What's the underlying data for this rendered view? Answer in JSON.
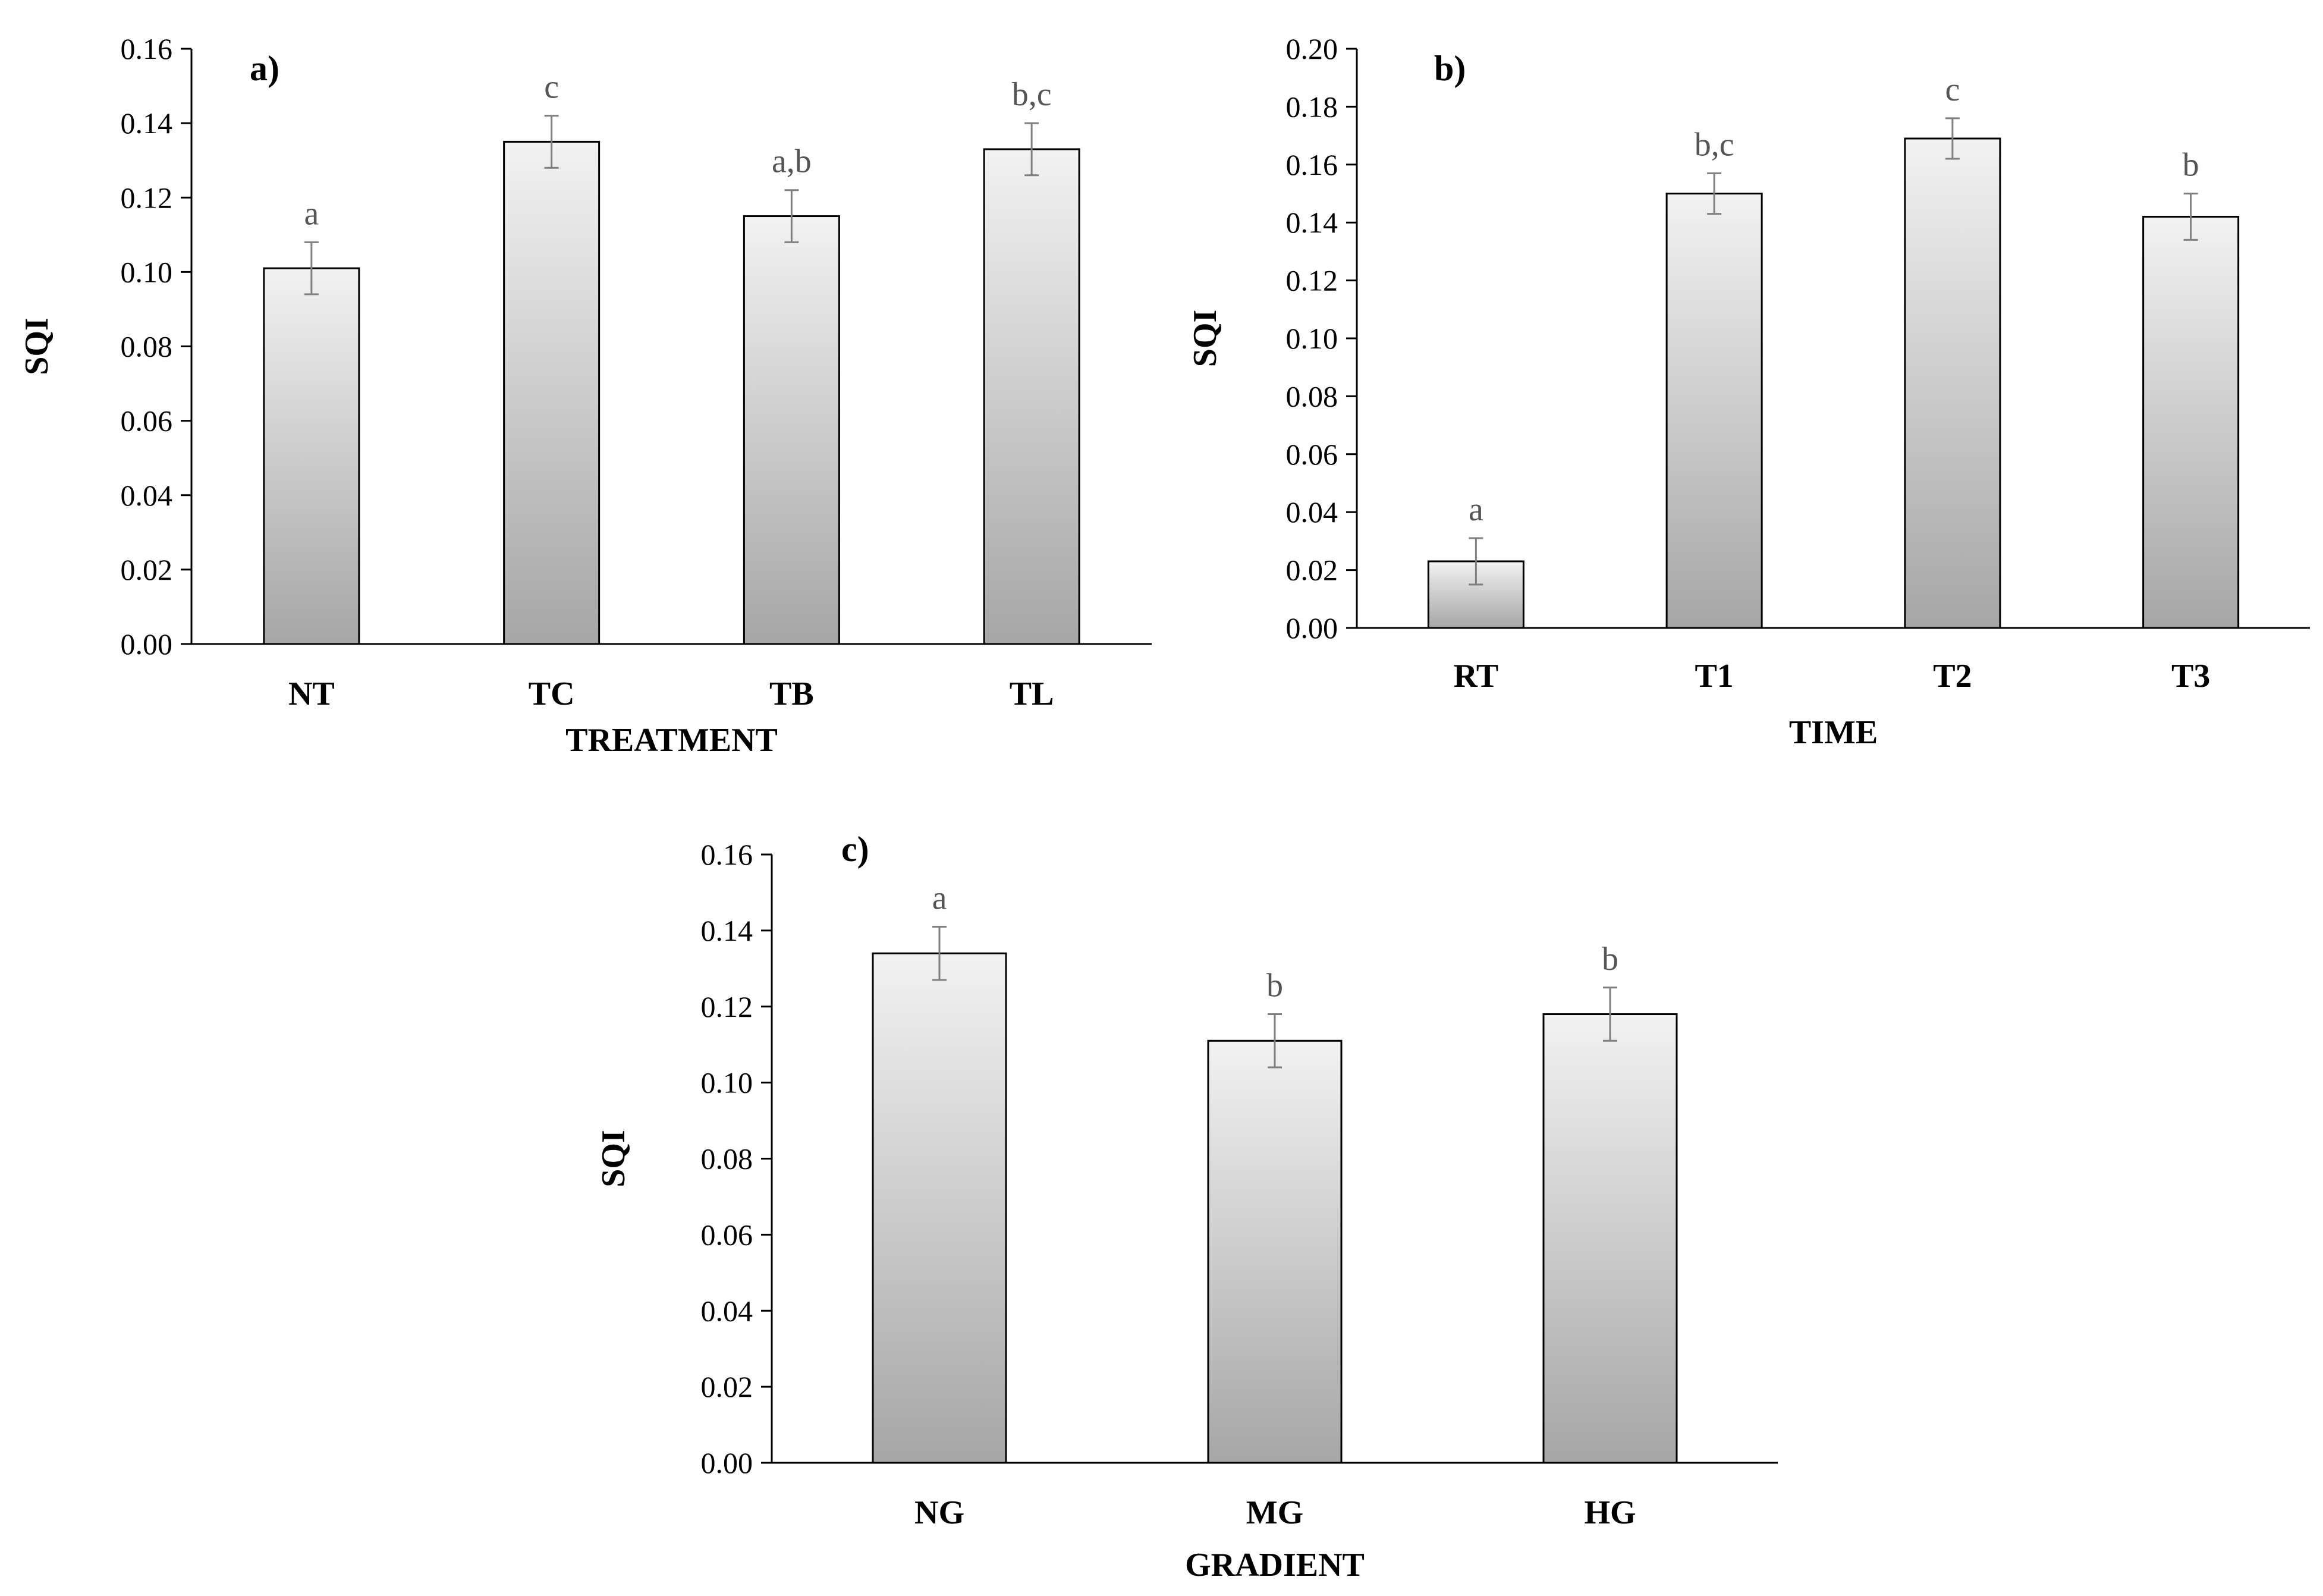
{
  "chart_data": [
    {
      "id": "a",
      "type": "bar",
      "panel_label": "a)",
      "title": "",
      "xlabel": "TREATMENT",
      "ylabel": "SQI",
      "ylim": [
        0,
        0.16
      ],
      "yticks": [
        "0.00",
        "0.02",
        "0.04",
        "0.06",
        "0.08",
        "0.10",
        "0.12",
        "0.14",
        "0.16"
      ],
      "categories": [
        "NT",
        "TC",
        "TB",
        "TL"
      ],
      "values": [
        0.101,
        0.135,
        0.115,
        0.133
      ],
      "errors": [
        0.007,
        0.007,
        0.007,
        0.007
      ],
      "letters": [
        "a",
        "c",
        "a,b",
        "b,c"
      ]
    },
    {
      "id": "b",
      "type": "bar",
      "panel_label": "b)",
      "title": "",
      "xlabel": "TIME",
      "ylabel": "SQI",
      "ylim": [
        0,
        0.2
      ],
      "yticks": [
        "0.00",
        "0.02",
        "0.04",
        "0.06",
        "0.08",
        "0.10",
        "0.12",
        "0.14",
        "0.16",
        "0.18",
        "0.20"
      ],
      "categories": [
        "RT",
        "T1",
        "T2",
        "T3"
      ],
      "values": [
        0.023,
        0.15,
        0.169,
        0.142
      ],
      "errors": [
        0.008,
        0.007,
        0.007,
        0.008
      ],
      "letters": [
        "a",
        "b,c",
        "c",
        "b"
      ]
    },
    {
      "id": "c",
      "type": "bar",
      "panel_label": "c)",
      "title": "",
      "xlabel": "GRADIENT",
      "ylabel": "SQI",
      "ylim": [
        0,
        0.16
      ],
      "yticks": [
        "0.00",
        "0.02",
        "0.04",
        "0.06",
        "0.08",
        "0.10",
        "0.12",
        "0.14",
        "0.16"
      ],
      "categories": [
        "NG",
        "MG",
        "HG"
      ],
      "values": [
        0.134,
        0.111,
        0.118
      ],
      "errors": [
        0.007,
        0.007,
        0.007
      ],
      "letters": [
        "a",
        "b",
        "b"
      ]
    }
  ],
  "colors": {
    "bar_top": "#f2f2f2",
    "bar_bottom": "#a6a6a6",
    "bar_stroke": "#000000",
    "error_bar": "#7f7f7f",
    "axis": "#000000",
    "letter": "#555555"
  }
}
